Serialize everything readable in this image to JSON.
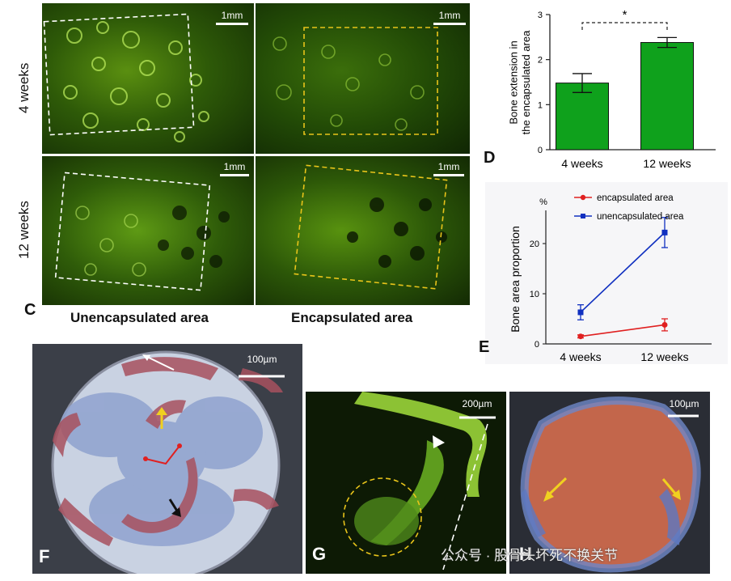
{
  "panels": {
    "C": {
      "label": "C",
      "row_labels": [
        "4 weeks",
        "12 weeks"
      ],
      "col_labels": [
        "Unencapsulated area",
        "Encapsulated area"
      ],
      "scale_text": "1mm"
    },
    "D": {
      "label": "D"
    },
    "E": {
      "label": "E"
    },
    "F": {
      "label": "F",
      "scale_text": "100µm"
    },
    "G": {
      "label": "G",
      "scale_text": "200µm"
    },
    "H": {
      "label": "H",
      "scale_text": "100µm"
    }
  },
  "watermark": "公众号 · 股骨头坏死不换关节",
  "chart_data": [
    {
      "type": "bar",
      "ylabel": "Bone extension in\nthe encapsulated area",
      "ylabel_lines": [
        "Bone extension in",
        "the encapsulated area"
      ],
      "categories": [
        "4 weeks",
        "12 weeks"
      ],
      "values": [
        1.48,
        2.38
      ],
      "errors": [
        0.21,
        0.11
      ],
      "ylim": [
        0,
        3
      ],
      "yticks": [
        "0",
        "1",
        "2",
        "3"
      ],
      "significance": "*",
      "bar_color": "#0fa11c"
    },
    {
      "type": "line",
      "ylabel": "Bone area proportion",
      "unit": "%",
      "categories": [
        "4 weeks",
        "12 weeks"
      ],
      "ylim": [
        0,
        25
      ],
      "yticks": [
        "0",
        "10",
        "20"
      ],
      "series": [
        {
          "name": "encapsulated area",
          "values": [
            1.5,
            3.8
          ],
          "errors": [
            0.3,
            1.2
          ],
          "color": "#e02020",
          "marker": "circle"
        },
        {
          "name": "unencapsulated area",
          "values": [
            6.3,
            22.2
          ],
          "errors": [
            1.5,
            3.0
          ],
          "color": "#1030c0",
          "marker": "square"
        }
      ]
    }
  ]
}
